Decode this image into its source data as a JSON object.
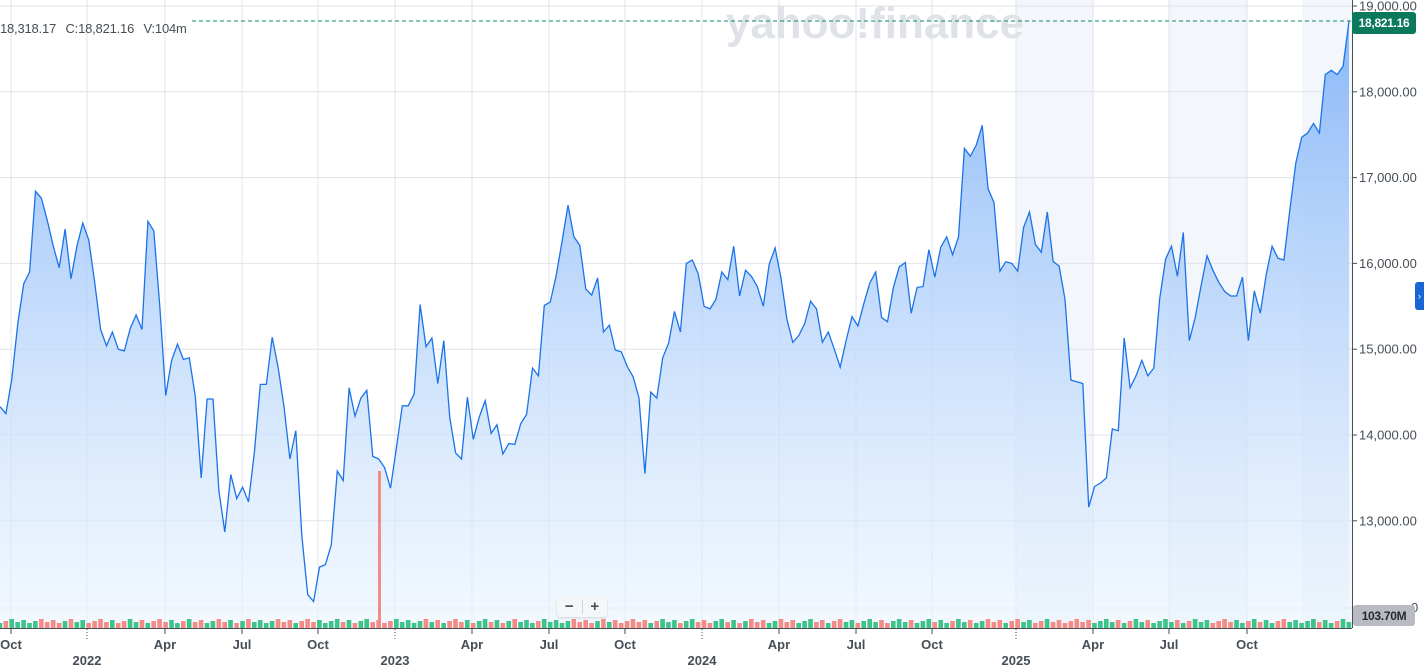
{
  "header": {
    "ohlc_low_partial": "18,318.17",
    "close_label": "C:18,821.16",
    "volume_label": "V:104m"
  },
  "watermark": "yahoo!finance",
  "last_price_tag": "18,821.16",
  "last_volume_tag": "103.70M",
  "volume_axis_zero": "0",
  "zoom_controls": {
    "minus": "−",
    "plus": "+"
  },
  "expand_icon": "›",
  "colors": {
    "line": "#1a73e8",
    "area_top": "#8ab8f8",
    "area_bottom": "#eaf4fe",
    "up_volume": "#3ec48b",
    "down_volume": "#f58b86",
    "last_price_tag": "#0b7a5c",
    "last_price_line": "#0b8a64",
    "grid": "#e0e3e8",
    "shaded_period": "#f3f6fa"
  },
  "chart_data": {
    "type": "area",
    "title": "",
    "xlabel": "",
    "ylabel": "",
    "ylim": [
      12000,
      19000
    ],
    "grid": true,
    "y_ticks": [
      "19,000.00",
      "18,000.00",
      "17,000.00",
      "16,000.00",
      "15,000.00",
      "14,000.00",
      "13,000.00"
    ],
    "x_ticks": [
      {
        "label": "Oct",
        "year": ""
      },
      {
        "label": "",
        "year": "2022"
      },
      {
        "label": "Apr",
        "year": ""
      },
      {
        "label": "Jul",
        "year": ""
      },
      {
        "label": "Oct",
        "year": ""
      },
      {
        "label": "",
        "year": "2023"
      },
      {
        "label": "Apr",
        "year": ""
      },
      {
        "label": "Jul",
        "year": ""
      },
      {
        "label": "Oct",
        "year": ""
      },
      {
        "label": "",
        "year": "2024"
      },
      {
        "label": "Apr",
        "year": ""
      },
      {
        "label": "Jul",
        "year": ""
      },
      {
        "label": "Oct",
        "year": ""
      },
      {
        "label": "",
        "year": "2025"
      },
      {
        "label": "Apr",
        "year": ""
      },
      {
        "label": "Jul",
        "year": ""
      },
      {
        "label": "Oct",
        "year": ""
      }
    ],
    "series": [
      {
        "name": "Close",
        "frequency": "weekly",
        "start": "2021-09",
        "values": [
          14330,
          14250,
          14650,
          15300,
          15760,
          15900,
          16840,
          16760,
          16500,
          16200,
          15950,
          16400,
          15820,
          16200,
          16470,
          16270,
          15780,
          15230,
          15040,
          15200,
          15000,
          14980,
          15240,
          15400,
          15230,
          16490,
          16380,
          15500,
          14460,
          14870,
          15060,
          14880,
          14900,
          14450,
          13500,
          14420,
          14420,
          13350,
          12870,
          13540,
          13260,
          13390,
          13220,
          13800,
          14590,
          14590,
          15140,
          14790,
          14330,
          13720,
          14050,
          12830,
          12140,
          12060,
          12460,
          12490,
          12720,
          13580,
          13470,
          14550,
          14220,
          14430,
          14520,
          13750,
          13720,
          13620,
          13380,
          13850,
          14340,
          14340,
          14480,
          15520,
          15030,
          15130,
          14600,
          15100,
          14210,
          13790,
          13720,
          14440,
          13950,
          14210,
          14400,
          14020,
          14120,
          13780,
          13900,
          13890,
          14130,
          14240,
          14780,
          14690,
          15510,
          15550,
          15860,
          16260,
          16680,
          16310,
          16210,
          15700,
          15630,
          15830,
          15200,
          15280,
          14990,
          14970,
          14800,
          14680,
          14430,
          13550,
          14500,
          14430,
          14900,
          15070,
          15440,
          15200,
          16000,
          16040,
          15880,
          15500,
          15470,
          15580,
          15900,
          15810,
          16200,
          15620,
          15920,
          15850,
          15730,
          15500,
          15990,
          16180,
          15830,
          15350,
          15080,
          15160,
          15300,
          15560,
          15470,
          15080,
          15200,
          15000,
          14790,
          15100,
          15380,
          15270,
          15530,
          15770,
          15900,
          15370,
          15320,
          15720,
          15960,
          16010,
          15420,
          15720,
          15730,
          16160,
          15840,
          16190,
          16310,
          16100,
          16310,
          17340,
          17250,
          17380,
          17610,
          16870,
          16710,
          15910,
          16020,
          16000,
          15910,
          16420,
          16600,
          16220,
          16130,
          16600,
          16020,
          15970,
          15580,
          14640,
          14620,
          14600,
          13160,
          13400,
          13440,
          13500,
          14070,
          14050,
          15130,
          14550,
          14690,
          14870,
          14690,
          14780,
          15590,
          16050,
          16200,
          15850,
          16360,
          15100,
          15370,
          15740,
          16090,
          15920,
          15780,
          15670,
          15620,
          15620,
          15840,
          15100,
          15680,
          15420,
          15870,
          16200,
          16060,
          16040,
          16620,
          17170,
          17470,
          17520,
          17630,
          17520,
          18200,
          18250,
          18200,
          18300,
          18821
        ]
      }
    ],
    "volume_series_note": "Weekly volume bars beneath price, green=up week, red=down week; spike bar ~Dec 2022 extends up to ~13,600 level",
    "last_close": 18821.16,
    "last_volume": "103.70M",
    "shaded_periods": [
      "2025-01 to 2025-04",
      "2025-07 to 2025-08",
      "2025-12 onward"
    ]
  }
}
